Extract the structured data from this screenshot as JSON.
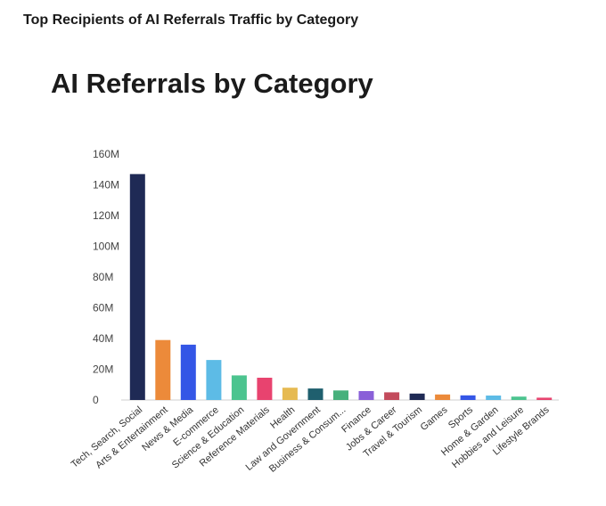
{
  "header": {
    "title": "Top Recipients of AI Referrals Traffic by Category"
  },
  "chart_data": {
    "type": "bar",
    "title": "AI Referrals by Category",
    "xlabel": "",
    "ylabel": "",
    "ylim": [
      0,
      160000000
    ],
    "y_ticks": [
      {
        "value": 0,
        "label": "0"
      },
      {
        "value": 20000000,
        "label": "20M"
      },
      {
        "value": 40000000,
        "label": "40M"
      },
      {
        "value": 60000000,
        "label": "60M"
      },
      {
        "value": 80000000,
        "label": "80M"
      },
      {
        "value": 100000000,
        "label": "100M"
      },
      {
        "value": 120000000,
        "label": "120M"
      },
      {
        "value": 140000000,
        "label": "140M"
      },
      {
        "value": 160000000,
        "label": "160M"
      }
    ],
    "grid": false,
    "legend": "none",
    "categories": [
      "Tech, Search, Social",
      "Arts & Entertainment",
      "News & Media",
      "E-commerce",
      "Science & Education",
      "Reference Materials",
      "Health",
      "Law and Government",
      "Business & Consum...",
      "Finance",
      "Jobs & Career",
      "Travel & Tourism",
      "Games",
      "Sports",
      "Home & Garden",
      "Hobbies and Leisure",
      "Lifestyle Brands"
    ],
    "values": [
      147000000,
      39000000,
      36000000,
      26000000,
      16000000,
      14500000,
      8000000,
      7500000,
      6200000,
      5800000,
      5000000,
      4200000,
      3600000,
      3000000,
      2900000,
      2200000,
      1500000
    ],
    "colors": [
      "#1f2a55",
      "#ec8a3a",
      "#3456e6",
      "#5dbbe6",
      "#4cc48f",
      "#e8436f",
      "#e6ba52",
      "#1f5f6e",
      "#47b07c",
      "#8a60d8",
      "#c34b5c",
      "#1f2a55",
      "#ec8a3a",
      "#3456e6",
      "#5dbbe6",
      "#4cc48f",
      "#e8436f"
    ]
  }
}
